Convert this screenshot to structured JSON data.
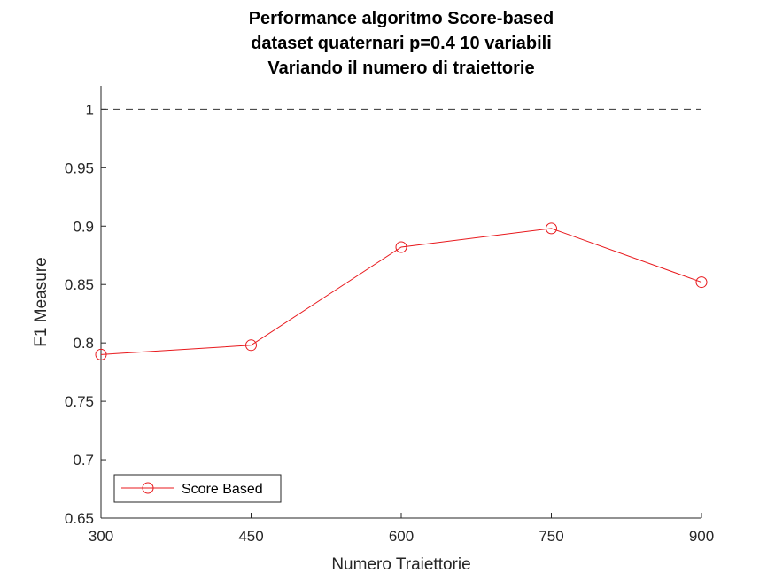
{
  "chart_data": {
    "type": "line",
    "title": [
      "Performance algoritmo Score-based",
      "dataset quaternari p=0.4 10 variabili",
      "Variando il numero di traiettorie"
    ],
    "xlabel": "Numero Traiettorie",
    "ylabel": "F1 Measure",
    "x": [
      300,
      450,
      600,
      750,
      900
    ],
    "xticks": [
      "300",
      "450",
      "600",
      "750",
      "900"
    ],
    "yticks": [
      "0.65",
      "0.7",
      "0.75",
      "0.8",
      "0.85",
      "0.9",
      "0.95",
      "1"
    ],
    "xlim": [
      300,
      900
    ],
    "ylim": [
      0.65,
      1.02
    ],
    "series": [
      {
        "name": "Score Based",
        "values": [
          0.79,
          0.798,
          0.882,
          0.898,
          0.852
        ],
        "color": "#e8181c",
        "marker": "circle"
      }
    ],
    "reference_line": {
      "y": 1,
      "style": "dashed",
      "color": "#333333"
    },
    "legend_position": "bottom-left",
    "grid": false
  }
}
